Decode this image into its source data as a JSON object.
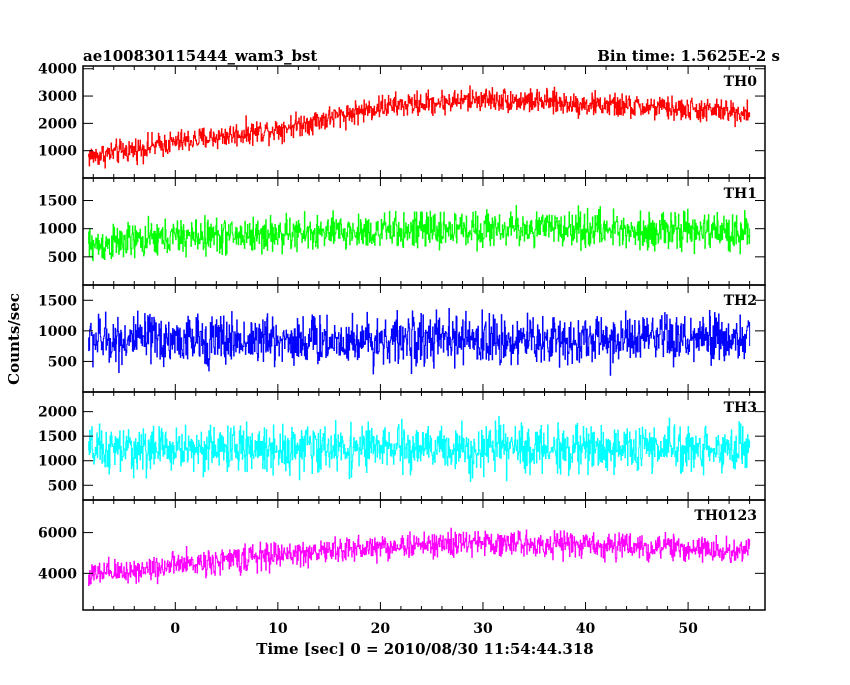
{
  "title_left": "ae100830115444_wam3_bst",
  "title_right": "Bin time: 1.5625E-2 s",
  "ylabel": "Counts/sec",
  "xlabel": "Time [sec] 0 = 2010/08/30 11:54:44.318",
  "chart_data": [
    {
      "type": "line",
      "name": "TH0",
      "color": "#ff0000",
      "x_range": [
        -8.5,
        56
      ],
      "ylim": [
        0,
        4100
      ],
      "yticks": [
        1000,
        2000,
        3000,
        4000
      ],
      "ytick_labels": [
        "1000",
        "2000",
        "3000",
        "4000"
      ],
      "trend": {
        "x": [
          -8,
          0,
          10,
          20,
          30,
          40,
          50,
          56
        ],
        "y": [
          800,
          1300,
          1800,
          2600,
          2900,
          2700,
          2500,
          2400
        ]
      },
      "noise_amplitude": 650
    },
    {
      "type": "line",
      "name": "TH1",
      "color": "#00ff00",
      "x_range": [
        -8.5,
        56
      ],
      "ylim": [
        0,
        1900
      ],
      "yticks": [
        500,
        1000,
        1500
      ],
      "ytick_labels": [
        "500",
        "1000",
        "1500"
      ],
      "trend": {
        "x": [
          -8,
          0,
          10,
          20,
          30,
          40,
          50,
          56
        ],
        "y": [
          700,
          850,
          900,
          950,
          1000,
          1000,
          950,
          950
        ]
      },
      "noise_amplitude": 480
    },
    {
      "type": "line",
      "name": "TH2",
      "color": "#0000ff",
      "x_range": [
        -8.5,
        56
      ],
      "ylim": [
        0,
        1750
      ],
      "yticks": [
        500,
        1000,
        1500
      ],
      "ytick_labels": [
        "500",
        "1000",
        "1500"
      ],
      "trend": {
        "x": [
          -8,
          0,
          10,
          20,
          30,
          40,
          50,
          56
        ],
        "y": [
          850,
          850,
          850,
          850,
          850,
          850,
          850,
          850
        ]
      },
      "noise_amplitude": 620
    },
    {
      "type": "line",
      "name": "TH3",
      "color": "#00ffff",
      "x_range": [
        -8.5,
        56
      ],
      "ylim": [
        200,
        2400
      ],
      "yticks": [
        500,
        1000,
        1500,
        2000
      ],
      "ytick_labels": [
        "500",
        "1000",
        "1500",
        "2000"
      ],
      "trend": {
        "x": [
          -8,
          0,
          10,
          20,
          30,
          40,
          50,
          56
        ],
        "y": [
          1200,
          1250,
          1250,
          1250,
          1250,
          1250,
          1250,
          1250
        ]
      },
      "noise_amplitude": 700
    },
    {
      "type": "line",
      "name": "TH0123",
      "color": "#ff00ff",
      "x_range": [
        -8.5,
        56
      ],
      "ylim": [
        2200,
        7600
      ],
      "yticks": [
        4000,
        6000
      ],
      "ytick_labels": [
        "4000",
        "6000"
      ],
      "trend": {
        "x": [
          -8,
          0,
          10,
          20,
          30,
          40,
          50,
          56
        ],
        "y": [
          3900,
          4400,
          4900,
          5300,
          5500,
          5400,
          5200,
          5100
        ]
      },
      "noise_amplitude": 950
    }
  ],
  "xaxis": {
    "ticks": [
      0,
      10,
      20,
      30,
      40,
      50
    ],
    "tick_labels": [
      "0",
      "10",
      "20",
      "30",
      "40",
      "50"
    ],
    "xlim": [
      -9,
      57.5
    ]
  }
}
